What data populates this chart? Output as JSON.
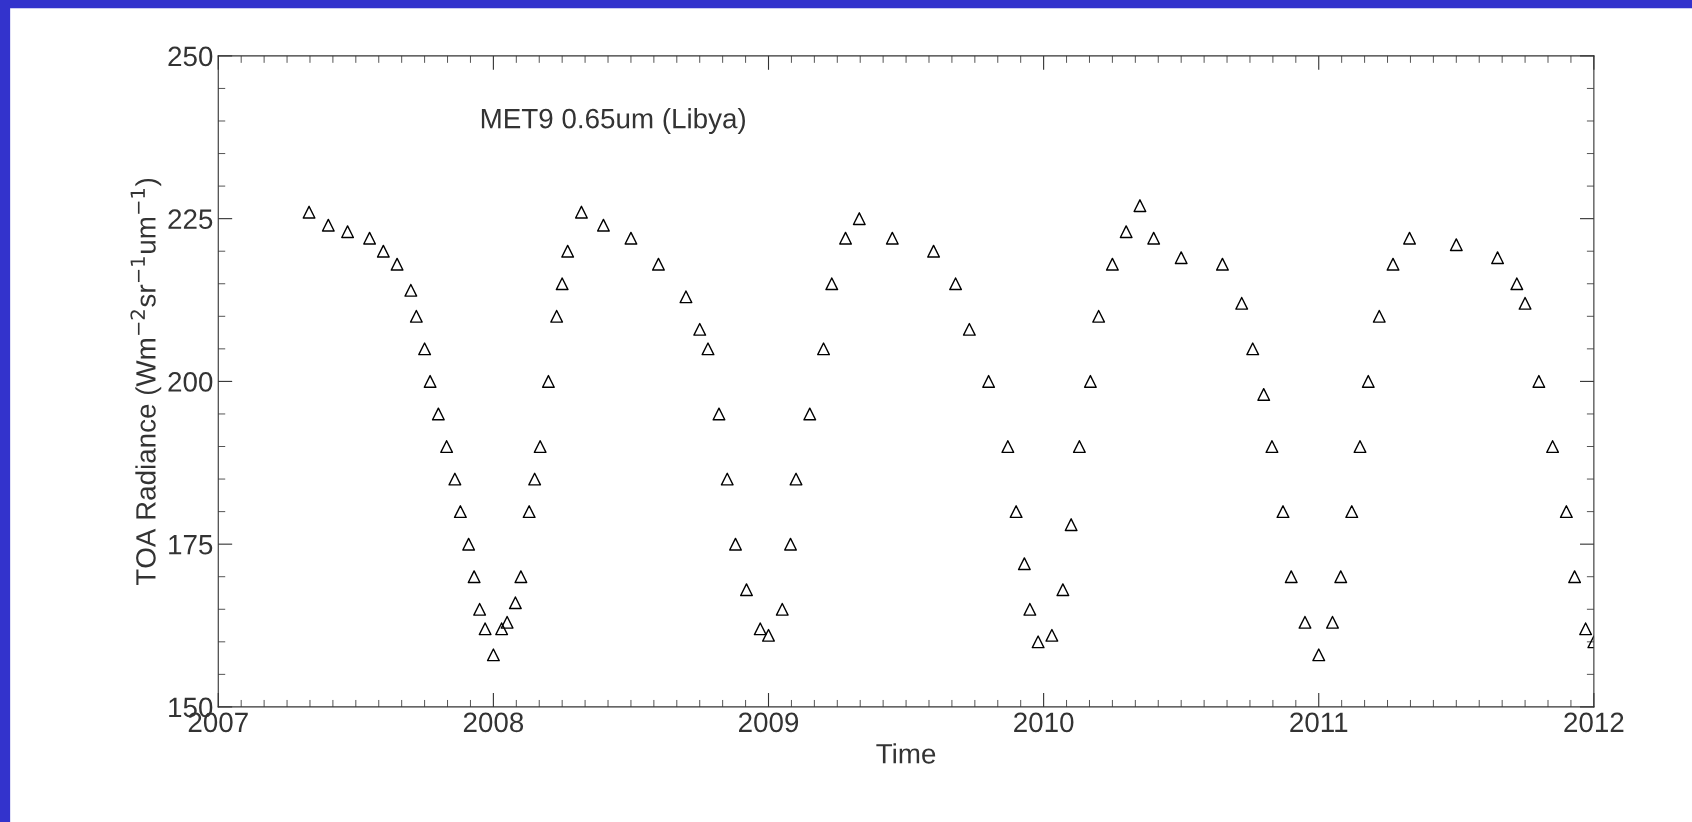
{
  "chart_data": {
    "type": "scatter",
    "xlabel": "Time",
    "ylabel": "TOA Radiance (Wm$^{−2}$sr$^{−1}$um$^{−1}$)",
    "annotations": [
      "MET9 0.65um (Libya)"
    ],
    "xlim": [
      2007,
      2012
    ],
    "xticks": [
      2007,
      2008,
      2009,
      2010,
      2011,
      2012
    ],
    "ylim": [
      150,
      250
    ],
    "yticks": [
      150,
      175,
      200,
      225,
      250
    ],
    "grid": false,
    "legend": false,
    "marker": "triangle",
    "series": [
      {
        "color": "#000000",
        "x": [
          2007.33,
          2007.4,
          2007.47,
          2007.55,
          2007.6,
          2007.65,
          2007.7,
          2007.72,
          2007.75,
          2007.77,
          2007.8,
          2007.83,
          2007.86,
          2007.88,
          2007.91,
          2007.93,
          2007.95,
          2007.97,
          2008.0,
          2008.03,
          2008.05,
          2008.08,
          2008.1,
          2008.13,
          2008.15,
          2008.17,
          2008.2,
          2008.23,
          2008.25,
          2008.27,
          2008.32,
          2008.4,
          2008.5,
          2008.6,
          2008.7,
          2008.75,
          2008.78,
          2008.82,
          2008.85,
          2008.88,
          2008.92,
          2008.97,
          2009.0,
          2009.05,
          2009.08,
          2009.1,
          2009.15,
          2009.2,
          2009.23,
          2009.28,
          2009.33,
          2009.45,
          2009.6,
          2009.68,
          2009.73,
          2009.8,
          2009.87,
          2009.9,
          2009.93,
          2009.95,
          2009.98,
          2010.03,
          2010.07,
          2010.1,
          2010.13,
          2010.17,
          2010.2,
          2010.25,
          2010.3,
          2010.35,
          2010.4,
          2010.5,
          2010.65,
          2010.72,
          2010.76,
          2010.8,
          2010.83,
          2010.87,
          2010.9,
          2010.95,
          2011.0,
          2011.05,
          2011.08,
          2011.12,
          2011.15,
          2011.18,
          2011.22,
          2011.27,
          2011.33,
          2011.5,
          2011.65,
          2011.72,
          2011.75,
          2011.8,
          2011.85,
          2011.9,
          2011.93,
          2011.97,
          2012.0
        ],
        "values": [
          226,
          224,
          223,
          222,
          220,
          218,
          214,
          210,
          205,
          200,
          195,
          190,
          185,
          180,
          175,
          170,
          165,
          162,
          158,
          162,
          163,
          166,
          170,
          180,
          185,
          190,
          200,
          210,
          215,
          220,
          226,
          224,
          222,
          218,
          213,
          208,
          205,
          195,
          185,
          175,
          168,
          162,
          161,
          165,
          175,
          185,
          195,
          205,
          215,
          222,
          225,
          222,
          220,
          215,
          208,
          200,
          190,
          180,
          172,
          165,
          160,
          161,
          168,
          178,
          190,
          200,
          210,
          218,
          223,
          227,
          222,
          219,
          218,
          212,
          205,
          198,
          190,
          180,
          170,
          163,
          158,
          163,
          170,
          180,
          190,
          200,
          210,
          218,
          222,
          221,
          219,
          215,
          212,
          200,
          190,
          180,
          170,
          162,
          160
        ]
      }
    ]
  }
}
